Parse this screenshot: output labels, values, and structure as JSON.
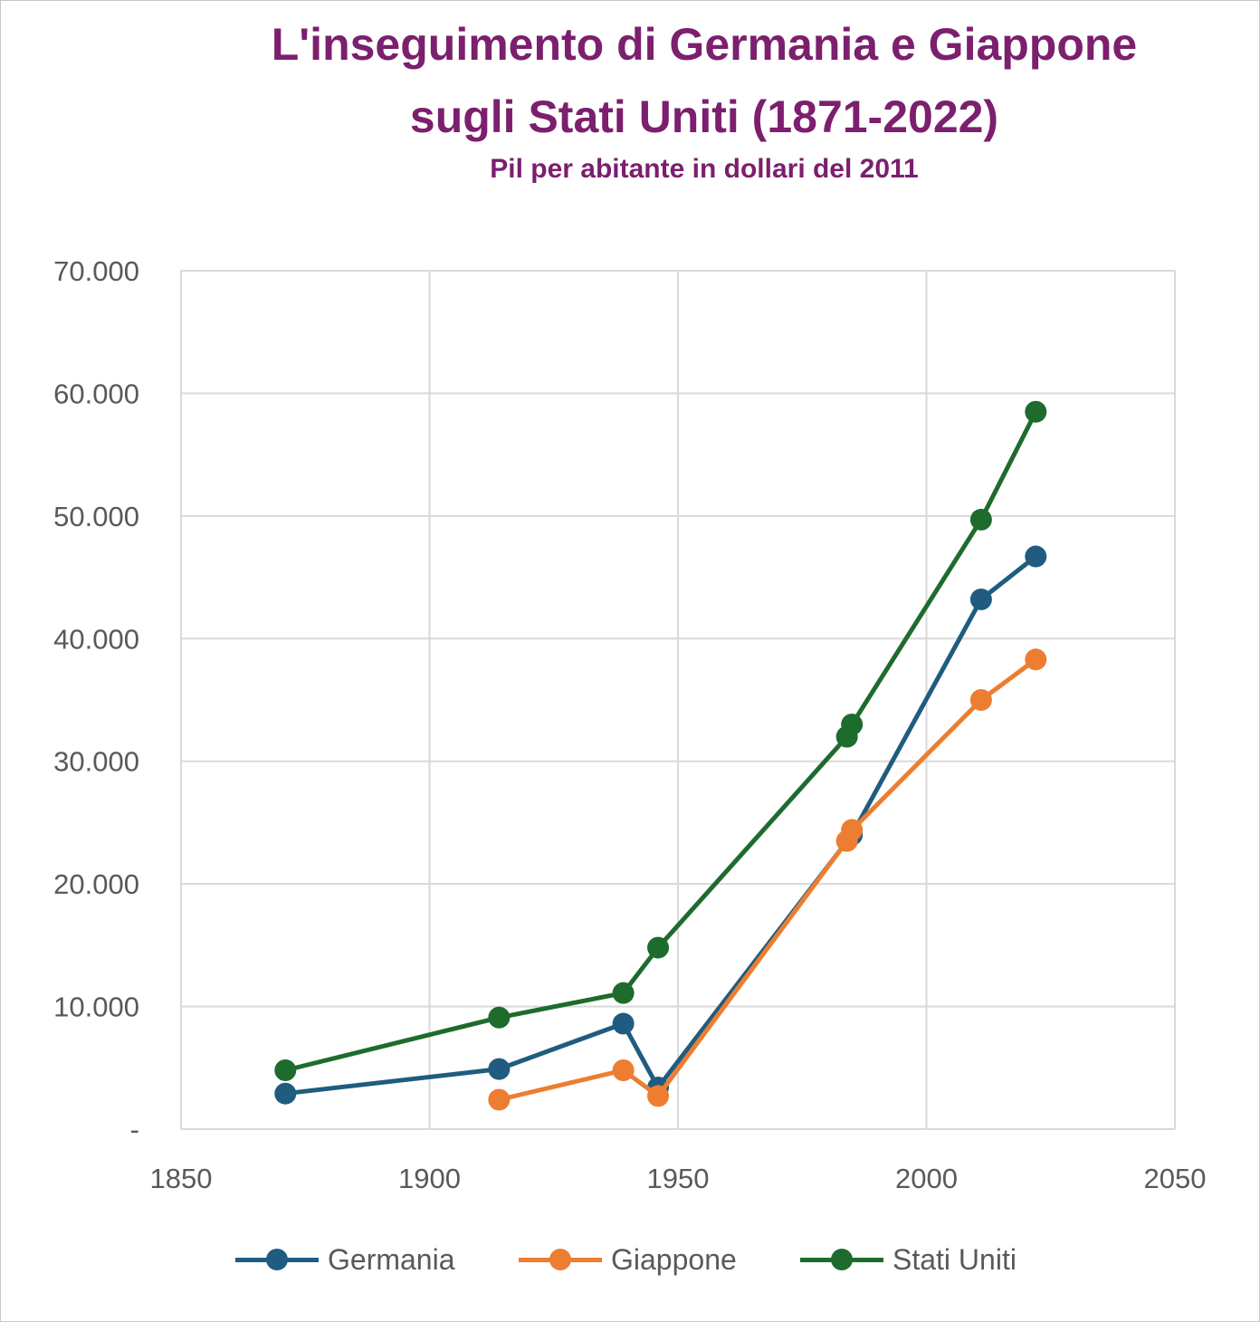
{
  "chart_data": {
    "type": "scatter",
    "title_line1": "L'inseguimento di Germania e Giappone",
    "title_line2": "sugli Stati Uniti (1871-2022)",
    "subtitle": "Pil per abitante in dollari del 2011",
    "xlim": [
      1850,
      2050
    ],
    "ylim": [
      0,
      70000
    ],
    "x_ticks": [
      1850,
      1900,
      1950,
      2000,
      2050
    ],
    "y_ticks": [
      0,
      10000,
      20000,
      30000,
      40000,
      50000,
      60000,
      70000
    ],
    "y_tick_labels": [
      "-",
      "10.000",
      "20.000",
      "30.000",
      "40.000",
      "50.000",
      "60.000",
      "70.000"
    ],
    "grid": true,
    "legend_position": "bottom",
    "series": [
      {
        "name": "Germania",
        "color": "#1f5c80",
        "points": [
          [
            1871,
            2900
          ],
          [
            1914,
            4900
          ],
          [
            1939,
            8600
          ],
          [
            1946,
            3400
          ],
          [
            1985,
            24000
          ],
          [
            2011,
            43200
          ],
          [
            2022,
            46700
          ]
        ]
      },
      {
        "name": "Giappone",
        "color": "#ed7d31",
        "points": [
          [
            1914,
            2400
          ],
          [
            1939,
            4800
          ],
          [
            1946,
            2700
          ],
          [
            1984,
            23500
          ],
          [
            1985,
            24400
          ],
          [
            2011,
            35000
          ],
          [
            2022,
            38300
          ]
        ]
      },
      {
        "name": "Stati Uniti",
        "color": "#1e6b2e",
        "points": [
          [
            1871,
            4800
          ],
          [
            1914,
            9100
          ],
          [
            1939,
            11100
          ],
          [
            1946,
            14800
          ],
          [
            1984,
            32000
          ],
          [
            1985,
            33000
          ],
          [
            2011,
            49700
          ],
          [
            2022,
            58500
          ]
        ]
      }
    ]
  }
}
